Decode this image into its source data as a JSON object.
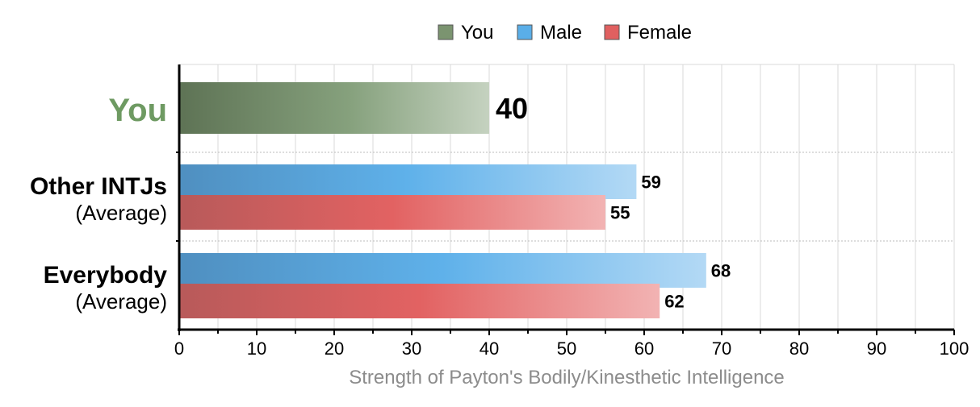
{
  "chart_data": {
    "type": "bar",
    "orientation": "horizontal",
    "xlabel": "Strength of Payton's Bodily/Kinesthetic Intelligence",
    "xlim": [
      0,
      100
    ],
    "xticks": [
      0,
      10,
      20,
      30,
      40,
      50,
      60,
      70,
      80,
      90,
      100
    ],
    "grid": true,
    "legend_position": "top-center",
    "legend": [
      {
        "name": "You",
        "color": "#7b9470"
      },
      {
        "name": "Male",
        "color": "#5aaee8"
      },
      {
        "name": "Female",
        "color": "#e06060"
      }
    ],
    "groups": [
      {
        "label": "You",
        "sublabel": "",
        "bars": [
          {
            "series": "You",
            "value": 40
          }
        ]
      },
      {
        "label": "Other INTJs",
        "sublabel": "(Average)",
        "bars": [
          {
            "series": "Male",
            "value": 59
          },
          {
            "series": "Female",
            "value": 55
          }
        ]
      },
      {
        "label": "Everybody",
        "sublabel": "(Average)",
        "bars": [
          {
            "series": "Male",
            "value": 68
          },
          {
            "series": "Female",
            "value": 62
          }
        ]
      }
    ]
  }
}
